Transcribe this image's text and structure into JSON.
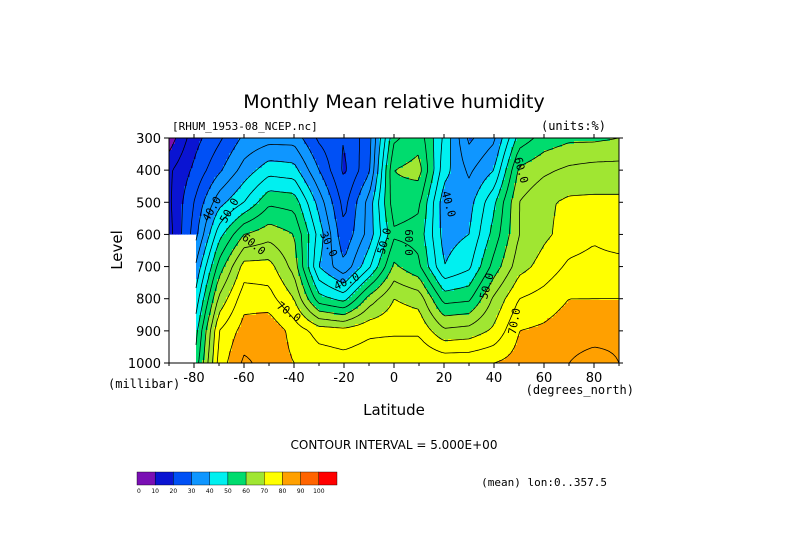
{
  "chart_data": {
    "type": "heatmap",
    "subtype": "filled-contour",
    "title": "Monthly Mean relative humidity",
    "source_label": "[RHUM_1953-08_NCEP.nc]",
    "units_label": "(units:%)",
    "xlabel": "Latitude",
    "x_units": "(degrees_north)",
    "ylabel": "Level",
    "y_units": "(millibar)",
    "xlim": [
      -90,
      90
    ],
    "ylim": [
      1000,
      300
    ],
    "x_ticks": [
      -80,
      -60,
      -40,
      -20,
      0,
      20,
      40,
      60,
      80
    ],
    "y_ticks": [
      300,
      400,
      500,
      600,
      700,
      800,
      900,
      1000
    ],
    "contour_interval_text": "CONTOUR INTERVAL = 5.000E+00",
    "mean_text": "(mean) lon:0..357.5",
    "colorbar": {
      "bounds": [
        0,
        10,
        20,
        30,
        40,
        50,
        60,
        70,
        80,
        90,
        100
      ],
      "colors": [
        "#7a0fb4",
        "#0a14d2",
        "#0050f5",
        "#0f96ff",
        "#00f0f0",
        "#00dc6e",
        "#a0e632",
        "#ffff00",
        "#ffa000",
        "#ff6400",
        "#ff0000"
      ]
    },
    "levels": [
      300,
      400,
      500,
      600,
      700,
      800,
      900,
      1000
    ],
    "latitudes": [
      -90,
      -80,
      -70,
      -60,
      -50,
      -40,
      -30,
      -20,
      -10,
      0,
      10,
      20,
      30,
      40,
      50,
      60,
      70,
      80,
      90
    ],
    "values": [
      [
        7,
        18,
        24,
        31,
        33,
        33,
        24,
        20,
        28,
        54,
        58,
        44,
        29,
        34,
        52,
        57,
        59,
        59,
        60
      ],
      [
        14,
        21,
        29,
        37,
        43,
        42,
        30,
        19,
        29,
        60,
        62,
        42,
        34,
        40,
        61,
        64,
        66,
        67,
        67
      ],
      [
        14,
        25,
        38,
        45,
        54,
        53,
        38,
        23,
        37,
        58,
        56,
        37,
        38,
        49,
        65,
        69,
        71,
        71,
        71
      ],
      [
        13,
        27,
        48,
        60,
        63,
        60,
        43,
        26,
        37,
        54,
        53,
        38,
        40,
        52,
        65,
        69,
        72,
        74,
        72
      ],
      [
        null,
        34,
        57,
        72,
        72,
        63,
        40,
        31,
        44,
        61,
        56,
        40,
        44,
        57,
        68,
        72,
        76,
        77,
        77
      ],
      [
        null,
        40,
        66,
        78,
        77,
        70,
        52,
        48,
        62,
        70,
        68,
        53,
        54,
        66,
        75,
        77,
        80,
        80,
        80
      ],
      [
        null,
        46,
        75,
        82,
        84,
        78,
        73,
        72,
        74,
        74,
        74,
        66,
        67,
        71,
        80,
        81,
        83,
        83,
        84
      ],
      [
        null,
        50,
        77,
        86,
        83,
        80,
        78,
        77,
        78,
        80,
        80,
        79,
        79,
        80,
        82,
        82,
        85,
        87,
        85
      ]
    ],
    "contour_labels": [
      {
        "text": "40.0",
        "lat": -73,
        "lev": 520,
        "rot": -60
      },
      {
        "text": "50.0",
        "lat": -66,
        "lev": 525,
        "rot": -60
      },
      {
        "text": "60.0",
        "lat": -56,
        "lev": 630,
        "rot": 40
      },
      {
        "text": "70.0",
        "lat": -42,
        "lev": 840,
        "rot": 35
      },
      {
        "text": "30.0",
        "lat": -26,
        "lev": 630,
        "rot": 65
      },
      {
        "text": "40.0",
        "lat": -19,
        "lev": 745,
        "rot": -25
      },
      {
        "text": "50.0",
        "lat": -4,
        "lev": 620,
        "rot": -75
      },
      {
        "text": "60.0",
        "lat": 6,
        "lev": 625,
        "rot": 90
      },
      {
        "text": "40.0",
        "lat": 22,
        "lev": 505,
        "rot": 75
      },
      {
        "text": "50.0",
        "lat": 37,
        "lev": 760,
        "rot": -75
      },
      {
        "text": "60.0",
        "lat": 51,
        "lev": 400,
        "rot": 75
      },
      {
        "text": "70.0",
        "lat": 48,
        "lev": 870,
        "rot": -80
      }
    ]
  }
}
